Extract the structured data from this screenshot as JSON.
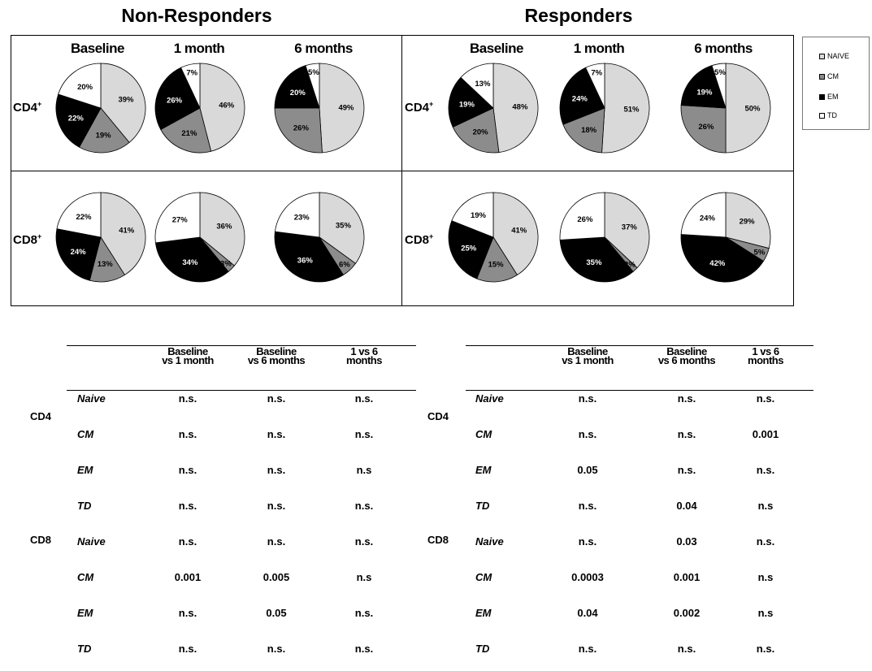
{
  "titles": {
    "non_responders": "Non-Responders",
    "responders": "Responders"
  },
  "timepoints": [
    "Baseline",
    "1 month",
    "6 months"
  ],
  "rows": [
    "CD4",
    "CD8"
  ],
  "legend": [
    {
      "label": "NAIVE",
      "color": "#d9d9d9"
    },
    {
      "label": "CM",
      "color": "#8c8c8c"
    },
    {
      "label": "EM",
      "color": "#000000"
    },
    {
      "label": "TD",
      "color": "#ffffff"
    }
  ],
  "chart_data": [
    {
      "type": "pie",
      "group": "Non-Responders",
      "cell": "CD4+",
      "timepoint": "Baseline",
      "categories": [
        "NAIVE",
        "CM",
        "EM",
        "TD"
      ],
      "values": [
        39,
        19,
        22,
        20
      ]
    },
    {
      "type": "pie",
      "group": "Non-Responders",
      "cell": "CD4+",
      "timepoint": "1 month",
      "categories": [
        "NAIVE",
        "CM",
        "EM",
        "TD"
      ],
      "values": [
        46,
        21,
        26,
        7
      ]
    },
    {
      "type": "pie",
      "group": "Non-Responders",
      "cell": "CD4+",
      "timepoint": "6 months",
      "categories": [
        "NAIVE",
        "CM",
        "EM",
        "TD"
      ],
      "values": [
        49,
        26,
        20,
        5
      ]
    },
    {
      "type": "pie",
      "group": "Responders",
      "cell": "CD4+",
      "timepoint": "Baseline",
      "categories": [
        "NAIVE",
        "CM",
        "EM",
        "TD"
      ],
      "values": [
        48,
        20,
        19,
        13
      ]
    },
    {
      "type": "pie",
      "group": "Responders",
      "cell": "CD4+",
      "timepoint": "1 month",
      "categories": [
        "NAIVE",
        "CM",
        "EM",
        "TD"
      ],
      "values": [
        51,
        18,
        24,
        7
      ]
    },
    {
      "type": "pie",
      "group": "Responders",
      "cell": "CD4+",
      "timepoint": "6 months",
      "categories": [
        "NAIVE",
        "CM",
        "EM",
        "TD"
      ],
      "values": [
        50,
        26,
        19,
        5
      ]
    },
    {
      "type": "pie",
      "group": "Non-Responders",
      "cell": "CD8+",
      "timepoint": "Baseline",
      "categories": [
        "NAIVE",
        "CM",
        "EM",
        "TD"
      ],
      "values": [
        41,
        13,
        24,
        22
      ]
    },
    {
      "type": "pie",
      "group": "Non-Responders",
      "cell": "CD8+",
      "timepoint": "1 month",
      "categories": [
        "NAIVE",
        "CM",
        "EM",
        "TD"
      ],
      "values": [
        36,
        3,
        34,
        27
      ]
    },
    {
      "type": "pie",
      "group": "Non-Responders",
      "cell": "CD8+",
      "timepoint": "6 months",
      "categories": [
        "NAIVE",
        "CM",
        "EM",
        "TD"
      ],
      "values": [
        35,
        6,
        36,
        23
      ]
    },
    {
      "type": "pie",
      "group": "Responders",
      "cell": "CD8+",
      "timepoint": "Baseline",
      "categories": [
        "NAIVE",
        "CM",
        "EM",
        "TD"
      ],
      "values": [
        41,
        15,
        25,
        19
      ]
    },
    {
      "type": "pie",
      "group": "Responders",
      "cell": "CD8+",
      "timepoint": "1 month",
      "categories": [
        "NAIVE",
        "CM",
        "EM",
        "TD"
      ],
      "values": [
        37,
        2,
        35,
        26
      ]
    },
    {
      "type": "pie",
      "group": "Responders",
      "cell": "CD8+",
      "timepoint": "6 months",
      "categories": [
        "NAIVE",
        "CM",
        "EM",
        "TD"
      ],
      "values": [
        29,
        5,
        42,
        24
      ]
    },
    {
      "type": "table",
      "group": "Non-Responders",
      "columns": [
        "Baseline vs 1 month",
        "Baseline vs 6 months",
        "1 vs 6 months"
      ],
      "rows": [
        {
          "cell": "CD4",
          "subset": "Naive",
          "values": [
            "n.s.",
            "n.s.",
            "n.s."
          ]
        },
        {
          "cell": "",
          "subset": "CM",
          "values": [
            "n.s.",
            "n.s.",
            "n.s."
          ]
        },
        {
          "cell": "",
          "subset": "EM",
          "values": [
            "n.s.",
            "n.s.",
            "n.s"
          ]
        },
        {
          "cell": "",
          "subset": "TD",
          "values": [
            "n.s.",
            "n.s.",
            "n.s."
          ]
        },
        {
          "cell": "CD8",
          "subset": "Naive",
          "values": [
            "n.s.",
            "n.s.",
            "n.s."
          ]
        },
        {
          "cell": "",
          "subset": "CM",
          "values": [
            "0.001",
            "0.005",
            "n.s"
          ]
        },
        {
          "cell": "",
          "subset": "EM",
          "values": [
            "n.s.",
            "0.05",
            "n.s."
          ]
        },
        {
          "cell": "",
          "subset": "TD",
          "values": [
            "n.s.",
            "n.s.",
            "n.s."
          ]
        }
      ]
    },
    {
      "type": "table",
      "group": "Responders",
      "columns": [
        "Baseline vs 1 month",
        "Baseline vs 6 months",
        "1 vs 6 months"
      ],
      "rows": [
        {
          "cell": "CD4",
          "subset": "Naive",
          "values": [
            "n.s.",
            "n.s.",
            "n.s."
          ]
        },
        {
          "cell": "",
          "subset": "CM",
          "values": [
            "n.s.",
            "n.s.",
            "0.001"
          ]
        },
        {
          "cell": "",
          "subset": "EM",
          "values": [
            "0.05",
            "n.s.",
            "n.s."
          ]
        },
        {
          "cell": "",
          "subset": "TD",
          "values": [
            "n.s.",
            "0.04",
            "n.s"
          ]
        },
        {
          "cell": "CD8",
          "subset": "Naive",
          "values": [
            "n.s.",
            "0.03",
            "n.s."
          ]
        },
        {
          "cell": "",
          "subset": "CM",
          "values": [
            "0.0003",
            "0.001",
            "n.s"
          ]
        },
        {
          "cell": "",
          "subset": "EM",
          "values": [
            "0.04",
            "0.002",
            "n.s"
          ]
        },
        {
          "cell": "",
          "subset": "TD",
          "values": [
            "n.s.",
            "n.s.",
            "n.s."
          ]
        }
      ]
    }
  ]
}
